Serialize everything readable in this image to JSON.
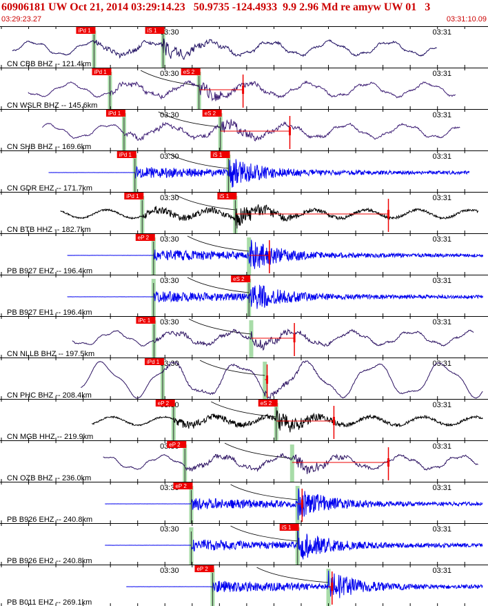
{
  "header": {
    "title": "60906181 UW Oct 21, 2014 03:29:14.23   50.9735 -124.4933  9.9 2.96 Md re amyw UW 01   3",
    "start_time": "03:29:23.27",
    "end_time": "03:31:10.09"
  },
  "colors": {
    "title": "#cc0000",
    "pick_box": "#ee0000",
    "pick_shade": "#a8dca8",
    "amp_marker": "#ee0000",
    "grid": "#000000",
    "travel_curve": "#000000"
  },
  "chart_data": {
    "type": "line",
    "title": "",
    "xlabel": "",
    "ylabel": "",
    "time_axis": {
      "start": "03:29:23.27",
      "end": "03:31:10.09",
      "tick_labels": [
        "03:30",
        "03:31"
      ],
      "tick_times_s": [
        36.73,
        96.73
      ],
      "range_s": [
        0,
        106.82
      ]
    },
    "traces": [
      {
        "label": "CN CBB BHZ -- 121.4km",
        "color": "#1a0a5e",
        "style": "lowfreq",
        "p_pick": "iPd 1",
        "s_pick": "iS 1",
        "p_time_s": 20.4,
        "s_time_s": 35.6,
        "end_s": 96,
        "tick_shift": 0,
        "amp_time_s": null,
        "amp_level": null
      },
      {
        "label": "CN WSLR BHZ -- 145.6km",
        "color": "#3a1a72",
        "style": "lowfreq",
        "p_pick": "iPd 1",
        "s_pick": "eS 2",
        "p_time_s": 23.9,
        "s_time_s": 43.5,
        "end_s": 100,
        "tick_shift": 0,
        "amp_time_s": 53.2,
        "amp_level": -0.1
      },
      {
        "label": "CN SHB BHZ -- 169.6km",
        "color": "#3a1a72",
        "style": "lowfreq",
        "p_pick": "iPd 1",
        "s_pick": "eS 2",
        "p_time_s": 27.0,
        "s_time_s": 48.2,
        "end_s": 101,
        "tick_shift": 0,
        "amp_time_s": 63.5,
        "amp_level": 0.0
      },
      {
        "label": "CN GDR EHZ -- 171.7km",
        "color": "#0000ee",
        "style": "highfreq",
        "p_pick": "iPd 1",
        "s_pick": "iS 1",
        "p_time_s": 29.4,
        "s_time_s": 50.0,
        "end_s": 103,
        "tick_shift": 0,
        "amp_time_s": null,
        "amp_level": null
      },
      {
        "label": "CN BTB HHZ -- 182.7km",
        "color": "#000000",
        "style": "broad",
        "p_pick": "iPd 1",
        "s_pick": "iS 1",
        "p_time_s": 31.0,
        "s_time_s": 51.5,
        "end_s": 105,
        "tick_shift": 0,
        "amp_time_s": 85.2,
        "amp_level": 0.0
      },
      {
        "label": "PB B927 EHZ -- 196.4km",
        "color": "#0000ee",
        "style": "highfreq",
        "p_pick": "eP 2",
        "s_pick": "",
        "p_time_s": 33.5,
        "s_time_s": 54.5,
        "end_s": 106,
        "tick_shift": 0,
        "amp_time_s": 59.0,
        "amp_level": 0.0
      },
      {
        "label": "PB B927 EH1 -- 196.4km",
        "color": "#0000ee",
        "style": "highfreq",
        "p_pick": "",
        "s_pick": "eS 2",
        "p_time_s": 33.5,
        "s_time_s": 54.5,
        "end_s": 106,
        "tick_shift": 0,
        "amp_time_s": null,
        "amp_level": null
      },
      {
        "label": "CN NLLB BHZ -- 197.5km",
        "color": "#2a1060",
        "style": "lowfreq",
        "p_pick": "iPc 1",
        "s_pick": "",
        "p_time_s": 33.6,
        "s_time_s": 55.0,
        "end_s": 104,
        "tick_shift": 0,
        "amp_time_s": 64.5,
        "amp_level": 0.0
      },
      {
        "label": "CN PHC BHZ -- 208.4km",
        "color": "#2a1060",
        "style": "verylowfreq",
        "p_pick": "iPd 1",
        "s_pick": "",
        "p_time_s": 35.5,
        "s_time_s": 58.0,
        "end_s": 106,
        "tick_shift": 0,
        "amp_time_s": 58.5,
        "amp_level": 0.0
      },
      {
        "label": "CN MGB HHZ -- 219.9km",
        "color": "#000000",
        "style": "broad",
        "p_pick": "eP 2",
        "s_pick": "eS 2",
        "p_time_s": 37.9,
        "s_time_s": 60.5,
        "end_s": 106,
        "tick_shift": 0,
        "amp_time_s": 73.2,
        "amp_level": 0.0
      },
      {
        "label": "CN OZB BHZ -- 236.0km",
        "color": "#2a1060",
        "style": "lowfreq",
        "p_pick": "eP 2",
        "s_pick": "",
        "p_time_s": 40.4,
        "s_time_s": 64.0,
        "end_s": 105,
        "tick_shift": 0,
        "amp_time_s": 85.2,
        "amp_level": 0.0
      },
      {
        "label": "PB B926 EHZ -- 240.8km",
        "color": "#0000ee",
        "style": "highfreq",
        "p_pick": "eP 2",
        "s_pick": "",
        "p_time_s": 41.8,
        "s_time_s": 65.2,
        "end_s": 106,
        "tick_shift": 0,
        "amp_time_s": 66.2,
        "amp_level": 0.45
      },
      {
        "label": "PB B926 EH2 -- 240.8km",
        "color": "#0000ee",
        "style": "highfreq",
        "p_pick": "",
        "s_pick": "iS 1",
        "p_time_s": 41.8,
        "s_time_s": 65.2,
        "end_s": 106,
        "tick_shift": 0,
        "amp_time_s": null,
        "amp_level": null
      },
      {
        "label": "PB B011 EHZ -- 269.1km",
        "color": "#0000ee",
        "style": "highfreq",
        "p_pick": "eP 2",
        "s_pick": "",
        "p_time_s": 46.5,
        "s_time_s": 72.0,
        "end_s": 106,
        "tick_shift": 0,
        "amp_time_s": 72.8,
        "amp_level": 0.0
      }
    ],
    "grid": true,
    "gridline_interval_s": 6.0
  }
}
